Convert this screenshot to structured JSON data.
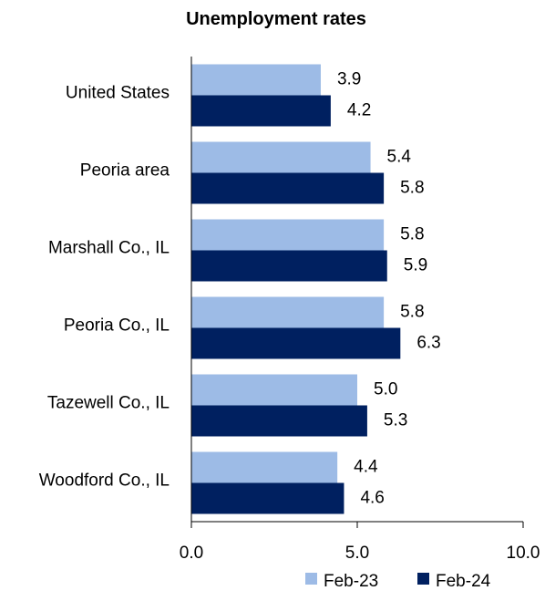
{
  "chart_data": {
    "type": "bar",
    "orientation": "horizontal",
    "title": "Unemployment rates",
    "categories": [
      "United States",
      "Peoria area",
      "Marshall Co., IL",
      "Peoria Co., IL",
      "Tazewell Co., IL",
      "Woodford Co., IL"
    ],
    "series": [
      {
        "name": "Feb-23",
        "color": "#9dbbe6",
        "values": [
          3.9,
          5.4,
          5.8,
          5.8,
          5.0,
          4.4
        ],
        "labels": [
          "3.9",
          "5.4",
          "5.8",
          "5.8",
          "5.0",
          "4.4"
        ]
      },
      {
        "name": "Feb-24",
        "color": "#002060",
        "values": [
          4.2,
          5.8,
          5.9,
          6.3,
          5.3,
          4.6
        ],
        "labels": [
          "4.2",
          "5.8",
          "5.9",
          "6.3",
          "5.3",
          "4.6"
        ]
      }
    ],
    "xlim": [
      0,
      10
    ],
    "xticks": [
      0,
      5,
      10
    ],
    "xtick_labels": [
      "0.0",
      "5.0",
      "10.0"
    ],
    "grid": false,
    "legend_position": "bottom-right"
  }
}
